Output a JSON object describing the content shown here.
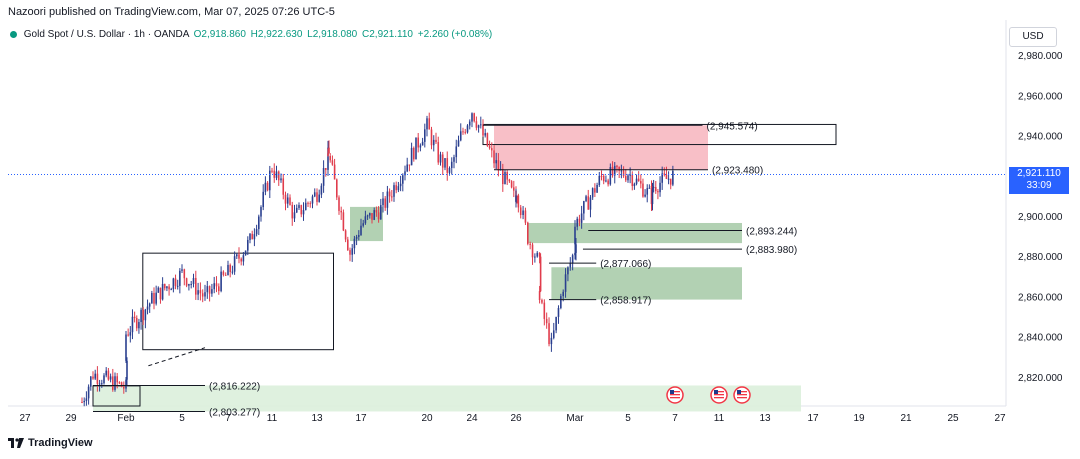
{
  "header": {
    "publish_line": "Nazoori published on TradingView.com, Mar 07, 2025 07:26 UTC-5"
  },
  "symbol": {
    "name": "Gold Spot / U.S. Dollar · 1h · OANDA",
    "open": "O2,918.860",
    "high": "H2,922.630",
    "low": "L2,918.080",
    "close": "C2,921.110",
    "change": "+2.260 (+0.08%)"
  },
  "currency": "USD",
  "last_price": {
    "value": "2,921.110",
    "countdown": "33:09"
  },
  "footer": {
    "brand": "TradingView"
  },
  "colors": {
    "up": "#089981",
    "down": "#f23645",
    "candle_up": "#2a3f8f",
    "candle_down": "#e03c4c",
    "supply_zone": "#f7b4bd",
    "demand_zone": "#a5c9a6",
    "demand_zone_light": "#dcefdc",
    "accent": "#2962ff"
  },
  "chart_data": {
    "type": "candlestick",
    "title": "Gold Spot / U.S. Dollar · 1h · OANDA",
    "ylim": [
      2806,
      2986
    ],
    "y_ticks": [
      "2,980.000",
      "2,960.000",
      "2,940.000",
      "2,920.000",
      "2,900.000",
      "2,880.000",
      "2,860.000",
      "2,840.000",
      "2,820.000"
    ],
    "y_tick_values": [
      2980,
      2960,
      2940,
      2920,
      2900,
      2880,
      2860,
      2840,
      2820
    ],
    "x_ticks": [
      "27",
      "29",
      "Feb",
      "5",
      "7",
      "11",
      "13",
      "17",
      "20",
      "24",
      "26",
      "Mar",
      "5",
      "7",
      "11",
      "13",
      "17",
      "19",
      "21",
      "25",
      "27"
    ],
    "price_path": [
      {
        "t": "Jan 30",
        "p": 2808
      },
      {
        "t": "Jan 31",
        "p": 2822
      },
      {
        "t": "Feb 3",
        "p": 2815
      },
      {
        "t": "Feb 3",
        "p": 2842
      },
      {
        "t": "Feb 4",
        "p": 2860
      },
      {
        "t": "Feb 5",
        "p": 2872
      },
      {
        "t": "Feb 6",
        "p": 2860
      },
      {
        "t": "Feb 7",
        "p": 2872
      },
      {
        "t": "Feb 9",
        "p": 2888
      },
      {
        "t": "Feb 10",
        "p": 2905
      },
      {
        "t": "Feb 11",
        "p": 2925
      },
      {
        "t": "Feb 12",
        "p": 2900
      },
      {
        "t": "Feb 13",
        "p": 2912
      },
      {
        "t": "Feb 14",
        "p": 2930
      },
      {
        "t": "Feb 14",
        "p": 2932
      },
      {
        "t": "Feb 16",
        "p": 2882
      },
      {
        "t": "Feb 17",
        "p": 2896
      },
      {
        "t": "Feb 18",
        "p": 2905
      },
      {
        "t": "Feb 19",
        "p": 2925
      },
      {
        "t": "Feb 20",
        "p": 2945
      },
      {
        "t": "Feb 21",
        "p": 2930
      },
      {
        "t": "Feb 22",
        "p": 2922
      },
      {
        "t": "Feb 23",
        "p": 2940
      },
      {
        "t": "Feb 24",
        "p": 2953
      },
      {
        "t": "Feb 25",
        "p": 2928
      },
      {
        "t": "Feb 26",
        "p": 2908
      },
      {
        "t": "Feb 26",
        "p": 2914
      },
      {
        "t": "Feb 27",
        "p": 2890
      },
      {
        "t": "Feb 28",
        "p": 2876
      },
      {
        "t": "Feb 28",
        "p": 2858
      },
      {
        "t": "Mar 1",
        "p": 2836
      },
      {
        "t": "Mar 2",
        "p": 2866
      },
      {
        "t": "Mar 3",
        "p": 2884
      },
      {
        "t": "Mar 3",
        "p": 2896
      },
      {
        "t": "Mar 4",
        "p": 2920
      },
      {
        "t": "Mar 5",
        "p": 2922
      },
      {
        "t": "Mar 6",
        "p": 2910
      },
      {
        "t": "Mar 6",
        "p": 2915
      },
      {
        "t": "Mar 7",
        "p": 2921
      }
    ],
    "levels": [
      {
        "label": "(2,945.574)",
        "value": 2945.574
      },
      {
        "label": "(2,923.480)",
        "value": 2923.48
      },
      {
        "label": "(2,893.244)",
        "value": 2893.244
      },
      {
        "label": "(2,883.980)",
        "value": 2883.98
      },
      {
        "label": "(2,877.066)",
        "value": 2877.066
      },
      {
        "label": "(2,858.917)",
        "value": 2858.917
      },
      {
        "label": "(2,816.222)",
        "value": 2816.222
      },
      {
        "label": "(2,803.277)",
        "value": 2803.277
      }
    ],
    "zones": [
      {
        "kind": "supply",
        "from": "Feb 25",
        "to": "Mar 10",
        "low": 2923.48,
        "high": 2945.574
      },
      {
        "kind": "demand",
        "from": "Feb 16",
        "to": "Feb 18",
        "low": 2888,
        "high": 2905
      },
      {
        "kind": "demand",
        "from": "Feb 27",
        "to": "Mar 12",
        "low": 2887,
        "high": 2897
      },
      {
        "kind": "demand",
        "from": "Feb 29",
        "to": "Mar 12",
        "low": 2858.917,
        "high": 2875
      },
      {
        "kind": "demand",
        "from": "Jan 31",
        "to": "Mar 16",
        "low": 2803.277,
        "high": 2816.222
      }
    ],
    "event_flags": [
      "Mar 7",
      "Mar 11",
      "Mar 12"
    ]
  }
}
